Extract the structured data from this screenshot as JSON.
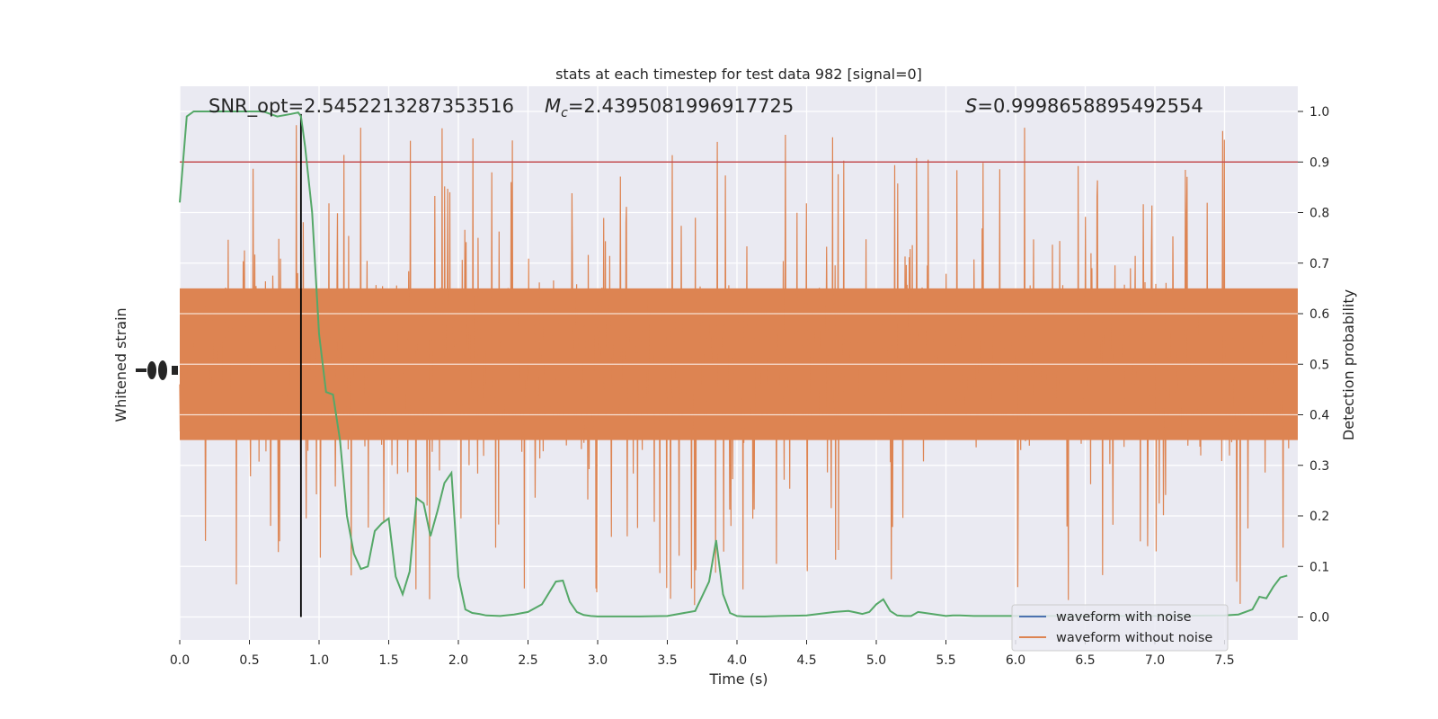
{
  "chart_data": {
    "type": "line",
    "title": "stats at each timestep for test data 982 [signal=0]",
    "xlabel": "Time (s)",
    "ylabel_left": "Whitened strain",
    "ylabel_right": "Detection probability",
    "xlim": [
      0.0,
      8.0
    ],
    "ylim_right": [
      -0.05,
      1.05
    ],
    "x_ticks": [
      "0.0",
      "0.5",
      "1.0",
      "1.5",
      "2.0",
      "2.5",
      "3.0",
      "3.5",
      "4.0",
      "4.5",
      "5.0",
      "5.5",
      "6.0",
      "6.5",
      "7.0",
      "7.5"
    ],
    "y_ticks_right": [
      "0.0",
      "0.1",
      "0.2",
      "0.3",
      "0.4",
      "0.5",
      "0.6",
      "0.7",
      "0.8",
      "0.9",
      "1.0"
    ],
    "grid": true,
    "legend_position": "lower-right",
    "annotations": {
      "snr": "SNR_opt=2.5452213287353516",
      "mc_symbol": "M",
      "mc_subscript": "c",
      "mc_value": "=2.4395081996917725",
      "s_symbol": "S",
      "s_value": "=0.9998658895492554"
    },
    "threshold": 0.9,
    "peak_time": 0.87,
    "series": [
      {
        "name": "waveform with noise",
        "color": "#4c72b0",
        "values": []
      },
      {
        "name": "waveform without noise",
        "color": "#dd8452"
      },
      {
        "color": "#55a868",
        "x": [
          0.0,
          0.05,
          0.1,
          0.15,
          0.2,
          0.3,
          0.4,
          0.5,
          0.6,
          0.7,
          0.8,
          0.85,
          0.87,
          0.9,
          0.95,
          1.0,
          1.05,
          1.1,
          1.15,
          1.2,
          1.25,
          1.3,
          1.35,
          1.4,
          1.45,
          1.5,
          1.55,
          1.6,
          1.65,
          1.7,
          1.75,
          1.8,
          1.85,
          1.9,
          1.95,
          2.0,
          2.05,
          2.1,
          2.15,
          2.2,
          2.3,
          2.4,
          2.5,
          2.6,
          2.7,
          2.75,
          2.8,
          2.85,
          2.9,
          2.95,
          3.0,
          3.1,
          3.3,
          3.5,
          3.7,
          3.8,
          3.85,
          3.9,
          3.95,
          4.0,
          4.05,
          4.1,
          4.2,
          4.3,
          4.5,
          4.7,
          4.8,
          4.85,
          4.9,
          4.95,
          5.0,
          5.05,
          5.1,
          5.15,
          5.2,
          5.25,
          5.3,
          5.4,
          5.5,
          5.55,
          5.6,
          5.7,
          5.8,
          6.0,
          6.5,
          7.0,
          7.5,
          7.6,
          7.7,
          7.75,
          7.8,
          7.85,
          7.9,
          7.95
        ],
        "y": [
          0.82,
          0.99,
          1.0,
          1.0,
          1.0,
          1.0,
          1.0,
          1.0,
          1.0,
          0.99,
          0.995,
          0.998,
          0.99,
          0.93,
          0.8,
          0.56,
          0.445,
          0.44,
          0.35,
          0.2,
          0.125,
          0.095,
          0.1,
          0.17,
          0.185,
          0.195,
          0.08,
          0.045,
          0.09,
          0.235,
          0.225,
          0.16,
          0.21,
          0.265,
          0.285,
          0.08,
          0.015,
          0.008,
          0.006,
          0.003,
          0.002,
          0.005,
          0.01,
          0.025,
          0.07,
          0.072,
          0.03,
          0.01,
          0.004,
          0.002,
          0.001,
          0.001,
          0.001,
          0.002,
          0.012,
          0.07,
          0.152,
          0.045,
          0.008,
          0.002,
          0.001,
          0.001,
          0.001,
          0.002,
          0.003,
          0.01,
          0.012,
          0.009,
          0.006,
          0.01,
          0.025,
          0.035,
          0.012,
          0.003,
          0.002,
          0.002,
          0.01,
          0.006,
          0.002,
          0.003,
          0.003,
          0.002,
          0.002,
          0.002,
          0.002,
          0.002,
          0.003,
          0.005,
          0.015,
          0.04,
          0.037,
          0.06,
          0.078,
          0.082
        ]
      }
    ],
    "noise_trace": {
      "center": 0.5,
      "spread": 0.13,
      "max_excursion": 0.48
    }
  },
  "colors": {
    "axes_bg": "#eaeaf2",
    "grid": "#ffffff",
    "threshold": "#c44e52",
    "marker_line": "#000000",
    "left_clutter": "#262626"
  }
}
